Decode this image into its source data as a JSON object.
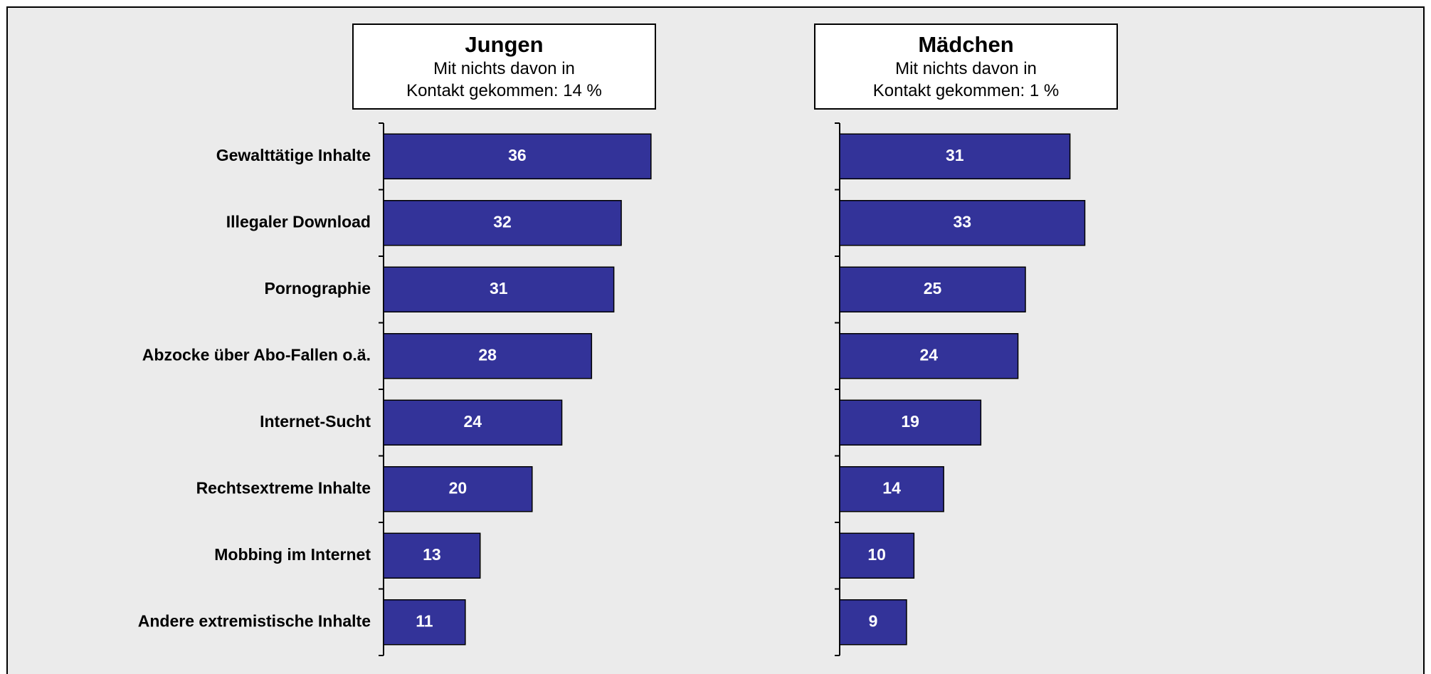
{
  "chart_data": [
    {
      "type": "bar",
      "orientation": "horizontal",
      "title": "Jungen",
      "subtitle": [
        "Mit nichts davon in",
        "Kontakt gekommen: 14 %"
      ],
      "categories": [
        "Gewalttätige Inhalte",
        "Illegaler Download",
        "Pornographie",
        "Abzocke über Abo-Fallen o.ä.",
        "Internet-Sucht",
        "Rechtsextreme Inhalte",
        "Mobbing im Internet",
        "Andere extremistische Inhalte"
      ],
      "values": [
        36,
        32,
        31,
        28,
        24,
        20,
        13,
        11
      ],
      "color": "#333399",
      "xlim": [
        0,
        50
      ]
    },
    {
      "type": "bar",
      "orientation": "horizontal",
      "title": "Mädchen",
      "subtitle": [
        "Mit nichts davon in",
        "Kontakt gekommen: 1 %"
      ],
      "values": [
        31,
        33,
        25,
        24,
        19,
        14,
        10,
        9
      ],
      "color": "#333399",
      "xlim": [
        0,
        50
      ]
    }
  ]
}
